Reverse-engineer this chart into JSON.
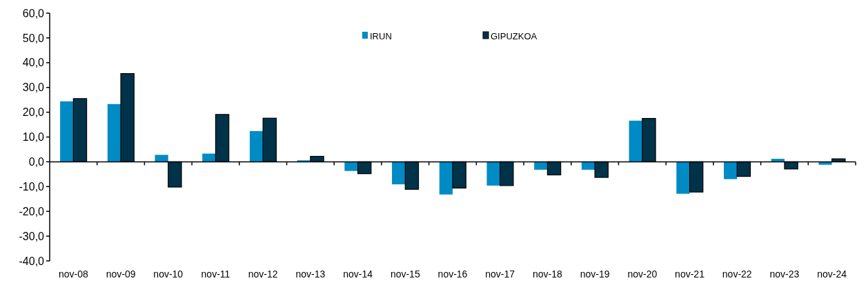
{
  "chart_data": {
    "type": "bar",
    "categories": [
      "nov-08",
      "nov-09",
      "nov-10",
      "nov-11",
      "nov-12",
      "nov-13",
      "nov-14",
      "nov-15",
      "nov-16",
      "nov-17",
      "nov-18",
      "nov-19",
      "nov-20",
      "nov-21",
      "nov-22",
      "nov-23",
      "nov-24"
    ],
    "series": [
      {
        "name": "IRUN",
        "color": "#008bc4",
        "values": [
          24.4,
          23.3,
          2.8,
          3.3,
          12.4,
          0.6,
          -3.7,
          -9.1,
          -13.2,
          -9.6,
          -3.2,
          -3.2,
          16.6,
          -12.9,
          -7.0,
          1.2,
          -1.2
        ]
      },
      {
        "name": "GIPUZKOA",
        "color": "#003349",
        "values": [
          25.5,
          35.6,
          -10.2,
          19.1,
          17.6,
          2.2,
          -4.8,
          -11.1,
          -10.6,
          -9.6,
          -5.3,
          -6.3,
          17.5,
          -12.2,
          -5.9,
          -2.9,
          1.2
        ]
      }
    ],
    "ylim": [
      -40,
      60
    ],
    "yticks": [
      {
        "value": -40,
        "label": "-40,0"
      },
      {
        "value": -30,
        "label": "-30,0"
      },
      {
        "value": -20,
        "label": "-20,0"
      },
      {
        "value": -10,
        "label": "-10,0"
      },
      {
        "value": 0,
        "label": "0,0"
      },
      {
        "value": 10,
        "label": "10,0"
      },
      {
        "value": 20,
        "label": "20,0"
      },
      {
        "value": 30,
        "label": "30,0"
      },
      {
        "value": 40,
        "label": "40,0"
      },
      {
        "value": 50,
        "label": "50,0"
      },
      {
        "value": 60,
        "label": "60,0"
      }
    ],
    "legend": "top"
  }
}
